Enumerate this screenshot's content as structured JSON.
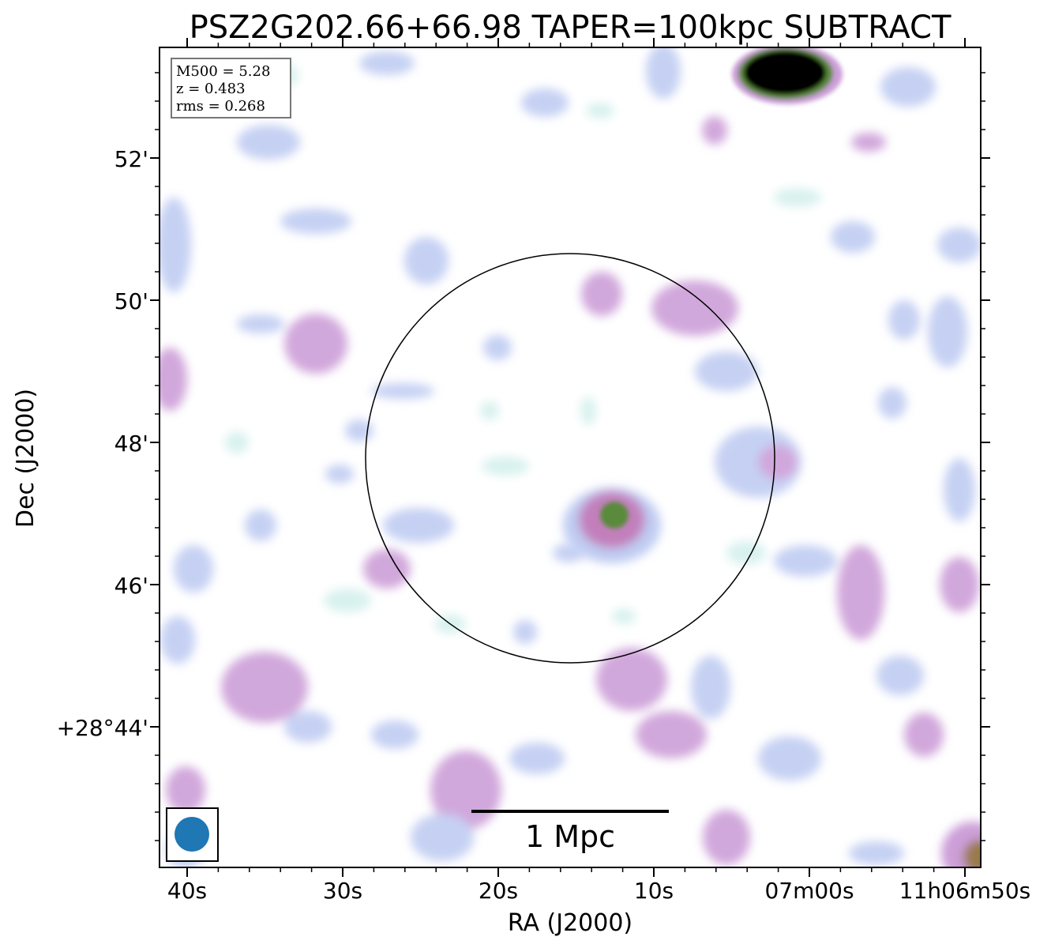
{
  "chart_data": {
    "type": "heatmap",
    "title": "PSZ2G202.66+66.98 TAPER=100kpc SUBTRACT",
    "xlabel": "RA (J2000)",
    "ylabel": "Dec (J2000)",
    "x_ticks": [
      "40s",
      "30s",
      "20s",
      "10s",
      "07m00s",
      "11h06m50s"
    ],
    "y_ticks": [
      "52'",
      "50'",
      "48'",
      "46'",
      "+28°44'"
    ],
    "info_box": [
      "M500 = 5.28",
      "z = 0.483",
      "rms = 0.268"
    ],
    "scale_bar_label": "1 Mpc",
    "colormap": [
      "#ffffff",
      "#d4f0ec",
      "#c0ccf2",
      "#cc9fd8",
      "#c27fbc",
      "#5a8a3a",
      "#000000"
    ],
    "beam_color": "#1f77b4",
    "circle": "R500 aperture centred on cluster",
    "emission": [
      {
        "feature": "bright compact source top-right",
        "level": "saturated"
      },
      {
        "feature": "central compact source",
        "level": "high"
      },
      {
        "feature": "bottom-right corner source",
        "level": "high"
      }
    ]
  }
}
